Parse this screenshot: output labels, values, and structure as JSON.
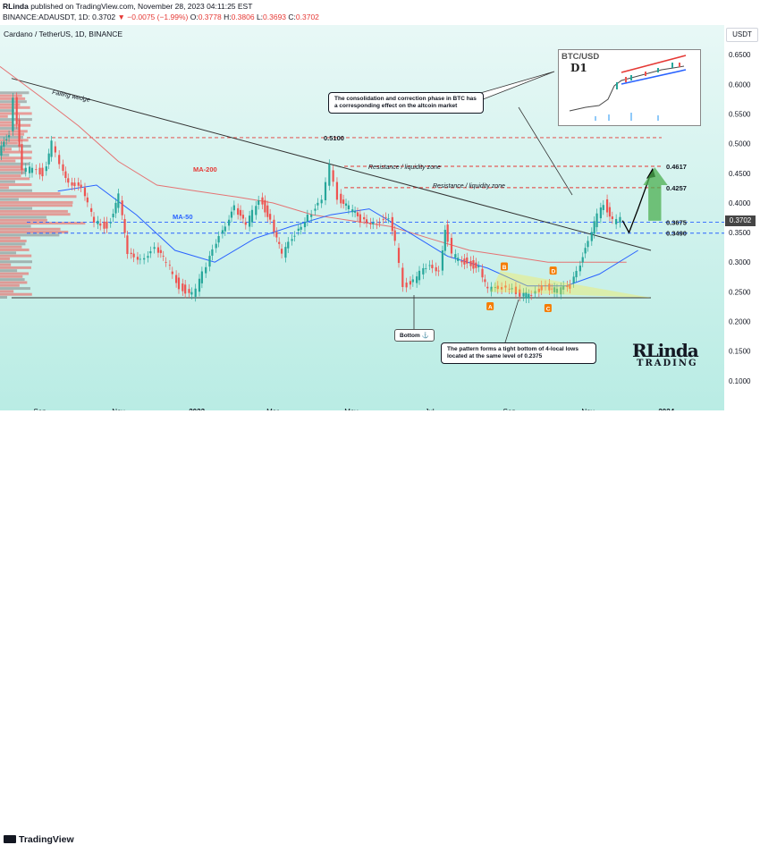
{
  "header": {
    "publisher": "RLinda",
    "published_text": "published on TradingView.com, November 28, 2023 04:11:25 EST",
    "symbol": "BINANCE:ADAUSDT, 1D",
    "last": "0.3702",
    "change": "▼ −0.0075 (−1.99%)",
    "open": "0.3778",
    "high": "0.3806",
    "low": "0.3693",
    "close": "0.3702"
  },
  "chart_title": "Cardano / TetherUS, 1D, BINANCE",
  "currency_label": "USDT",
  "current_price_tag": "0.3702",
  "footer": {
    "brand": "TradingView"
  },
  "annotations": {
    "falling_wedge": "Falling wedge",
    "ma200": "MA-200",
    "ma50": "MA-50",
    "resistance1": "Resistance / liquidity zone",
    "resistance2": "Resistance / liquidity zone",
    "btc_note": "The consolidation and correction phase in BTC has a corresponding effect on the altcoin market",
    "bottom_note": "The pattern forms a tight bottom of 4-local lows located at the same level of 0.2375",
    "bottom_tag": "Bottom ⚓",
    "inset_title": "BTC/USD",
    "inset_sub": "D1",
    "pts": [
      "A",
      "B",
      "C",
      "D"
    ]
  },
  "logo": {
    "main": "RLinda",
    "sub": "TRADING"
  },
  "colors": {
    "candle_up": "#26a69a",
    "candle_down": "#ef5350",
    "ma50": "#2962ff",
    "ma200": "#e57373",
    "level": "#e53935",
    "support": "#2962ff",
    "target_arrow": "#4caf50"
  },
  "chart_data": {
    "type": "candlestick",
    "title": "Cardano / TetherUS, 1D, BINANCE",
    "y_axis": {
      "min": 0.05,
      "max": 0.7,
      "ticks": [
        "0.6500",
        "0.6000",
        "0.5500",
        "0.5000",
        "0.4500",
        "0.4000",
        "0.3500",
        "0.3000",
        "0.2500",
        "0.2000",
        "0.1500",
        "0.1000"
      ],
      "tick_values": [
        0.65,
        0.6,
        0.55,
        0.5,
        0.45,
        0.4,
        0.35,
        0.3,
        0.25,
        0.2,
        0.15,
        0.1
      ]
    },
    "x_axis": {
      "start": "2022-08-01",
      "end": "2024-02-15",
      "ticks": [
        "Sep",
        "Nov",
        "2023",
        "Mar",
        "May",
        "Jul",
        "Sep",
        "Nov",
        "2024"
      ],
      "tick_dates": [
        "2022-09-01",
        "2022-11-01",
        "2023-01-01",
        "2023-03-01",
        "2023-05-01",
        "2023-07-01",
        "2023-09-01",
        "2023-11-01",
        "2024-01-01"
      ]
    },
    "levels": [
      {
        "label": "0.5100",
        "value": 0.51,
        "style": "dashed"
      },
      {
        "label": "0.4617",
        "value": 0.4617,
        "style": "dashed"
      },
      {
        "label": "0.4257",
        "value": 0.4257,
        "style": "dashed"
      },
      {
        "label": "0.3675",
        "value": 0.3675,
        "style": "dashed-blue"
      },
      {
        "label": "0.3490",
        "value": 0.349,
        "style": "dashed-blue"
      }
    ],
    "last_price": 0.3702,
    "path": [
      [
        "2022-08-01",
        0.48
      ],
      [
        "2022-08-10",
        0.52
      ],
      [
        "2022-08-13",
        0.58
      ],
      [
        "2022-08-20",
        0.45
      ],
      [
        "2022-08-28",
        0.46
      ],
      [
        "2022-09-05",
        0.45
      ],
      [
        "2022-09-12",
        0.5
      ],
      [
        "2022-09-18",
        0.46
      ],
      [
        "2022-09-25",
        0.44
      ],
      [
        "2022-10-05",
        0.42
      ],
      [
        "2022-10-15",
        0.37
      ],
      [
        "2022-10-25",
        0.36
      ],
      [
        "2022-11-03",
        0.41
      ],
      [
        "2022-11-10",
        0.31
      ],
      [
        "2022-11-20",
        0.31
      ],
      [
        "2022-12-01",
        0.32
      ],
      [
        "2022-12-10",
        0.3
      ],
      [
        "2022-12-20",
        0.26
      ],
      [
        "2022-12-30",
        0.245
      ],
      [
        "2023-01-10",
        0.29
      ],
      [
        "2023-01-20",
        0.35
      ],
      [
        "2023-02-01",
        0.39
      ],
      [
        "2023-02-10",
        0.36
      ],
      [
        "2023-02-20",
        0.41
      ],
      [
        "2023-03-01",
        0.37
      ],
      [
        "2023-03-10",
        0.31
      ],
      [
        "2023-03-20",
        0.35
      ],
      [
        "2023-03-30",
        0.38
      ],
      [
        "2023-04-10",
        0.4
      ],
      [
        "2023-04-16",
        0.46
      ],
      [
        "2023-04-22",
        0.41
      ],
      [
        "2023-05-01",
        0.39
      ],
      [
        "2023-05-10",
        0.37
      ],
      [
        "2023-05-20",
        0.37
      ],
      [
        "2023-06-01",
        0.37
      ],
      [
        "2023-06-06",
        0.33
      ],
      [
        "2023-06-12",
        0.26
      ],
      [
        "2023-06-20",
        0.27
      ],
      [
        "2023-06-30",
        0.29
      ],
      [
        "2023-07-10",
        0.29
      ],
      [
        "2023-07-14",
        0.36
      ],
      [
        "2023-07-20",
        0.31
      ],
      [
        "2023-08-01",
        0.3
      ],
      [
        "2023-08-10",
        0.29
      ],
      [
        "2023-08-17",
        0.25
      ],
      [
        "2023-08-28",
        0.26
      ],
      [
        "2023-09-05",
        0.26
      ],
      [
        "2023-09-11",
        0.24
      ],
      [
        "2023-09-20",
        0.25
      ],
      [
        "2023-10-01",
        0.26
      ],
      [
        "2023-10-10",
        0.25
      ],
      [
        "2023-10-20",
        0.26
      ],
      [
        "2023-10-25",
        0.29
      ],
      [
        "2023-11-03",
        0.33
      ],
      [
        "2023-11-10",
        0.38
      ],
      [
        "2023-11-15",
        0.4
      ],
      [
        "2023-11-22",
        0.37
      ],
      [
        "2023-11-28",
        0.3702
      ]
    ],
    "ma50": [
      [
        "2022-09-15",
        0.42
      ],
      [
        "2022-10-15",
        0.43
      ],
      [
        "2022-11-15",
        0.38
      ],
      [
        "2022-12-15",
        0.32
      ],
      [
        "2023-01-15",
        0.3
      ],
      [
        "2023-02-15",
        0.34
      ],
      [
        "2023-03-15",
        0.36
      ],
      [
        "2023-04-15",
        0.38
      ],
      [
        "2023-05-15",
        0.39
      ],
      [
        "2023-06-15",
        0.35
      ],
      [
        "2023-07-15",
        0.31
      ],
      [
        "2023-08-15",
        0.29
      ],
      [
        "2023-09-15",
        0.26
      ],
      [
        "2023-10-15",
        0.26
      ],
      [
        "2023-11-10",
        0.28
      ],
      [
        "2023-12-10",
        0.32
      ]
    ],
    "ma200": [
      [
        "2022-08-01",
        0.63
      ],
      [
        "2022-09-01",
        0.58
      ],
      [
        "2022-10-01",
        0.53
      ],
      [
        "2022-11-01",
        0.47
      ],
      [
        "2022-12-01",
        0.43
      ],
      [
        "2023-01-01",
        0.42
      ],
      [
        "2023-02-01",
        0.41
      ],
      [
        "2023-03-01",
        0.4
      ],
      [
        "2023-04-01",
        0.38
      ],
      [
        "2023-05-01",
        0.37
      ],
      [
        "2023-06-01",
        0.36
      ],
      [
        "2023-07-01",
        0.34
      ],
      [
        "2023-08-01",
        0.32
      ],
      [
        "2023-09-01",
        0.31
      ],
      [
        "2023-10-01",
        0.3
      ],
      [
        "2023-11-01",
        0.3
      ],
      [
        "2023-12-01",
        0.3
      ]
    ],
    "wedge_upper": [
      [
        "2022-08-10",
        0.61
      ],
      [
        "2023-12-20",
        0.32
      ]
    ],
    "wedge_lower": [
      [
        "2022-08-10",
        0.24
      ],
      [
        "2023-12-20",
        0.24
      ]
    ],
    "forecast_path": [
      [
        "2023-11-28",
        0.3702
      ],
      [
        "2023-12-03",
        0.35
      ],
      [
        "2023-12-10",
        0.39
      ],
      [
        "2023-12-20",
        0.45
      ]
    ]
  }
}
